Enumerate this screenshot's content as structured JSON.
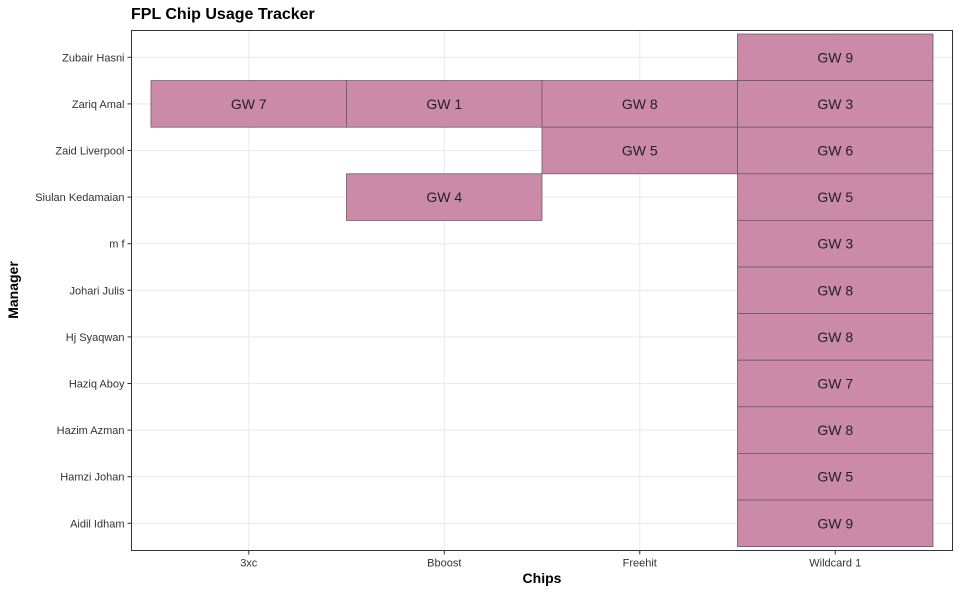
{
  "chart_data": {
    "type": "heatmap",
    "title": "FPL Chip Usage Tracker",
    "xlabel": "Chips",
    "ylabel": "Manager",
    "x_categories": [
      "3xc",
      "Bboost",
      "Freehit",
      "Wildcard 1"
    ],
    "y_categories": [
      "Zubair Hasni",
      "Zariq Amal",
      "Zaid Liverpool",
      "Siulan Kedamaian",
      "m f",
      "Johari Julis",
      "Hj Syaqwan",
      "Haziq Aboy",
      "Hazim Azman",
      "Hamzi Johan",
      "Aidil Idham"
    ],
    "cells": [
      {
        "manager": "Zubair Hasni",
        "chip": "Wildcard 1",
        "label": "GW 9"
      },
      {
        "manager": "Zariq Amal",
        "chip": "3xc",
        "label": "GW 7"
      },
      {
        "manager": "Zariq Amal",
        "chip": "Bboost",
        "label": "GW 1"
      },
      {
        "manager": "Zariq Amal",
        "chip": "Freehit",
        "label": "GW 8"
      },
      {
        "manager": "Zariq Amal",
        "chip": "Wildcard 1",
        "label": "GW 3"
      },
      {
        "manager": "Zaid Liverpool",
        "chip": "Freehit",
        "label": "GW 5"
      },
      {
        "manager": "Zaid Liverpool",
        "chip": "Wildcard 1",
        "label": "GW 6"
      },
      {
        "manager": "Siulan Kedamaian",
        "chip": "Bboost",
        "label": "GW 4"
      },
      {
        "manager": "Siulan Kedamaian",
        "chip": "Wildcard 1",
        "label": "GW 5"
      },
      {
        "manager": "m f",
        "chip": "Wildcard 1",
        "label": "GW 3"
      },
      {
        "manager": "Johari Julis",
        "chip": "Wildcard 1",
        "label": "GW 8"
      },
      {
        "manager": "Hj Syaqwan",
        "chip": "Wildcard 1",
        "label": "GW 8"
      },
      {
        "manager": "Haziq Aboy",
        "chip": "Wildcard 1",
        "label": "GW 7"
      },
      {
        "manager": "Hazim Azman",
        "chip": "Wildcard 1",
        "label": "GW 8"
      },
      {
        "manager": "Hamzi Johan",
        "chip": "Wildcard 1",
        "label": "GW 5"
      },
      {
        "manager": "Aidil Idham",
        "chip": "Wildcard 1",
        "label": "GW 9"
      }
    ],
    "fill_color": "#cc8aa9",
    "grid": true,
    "legend": "none"
  }
}
